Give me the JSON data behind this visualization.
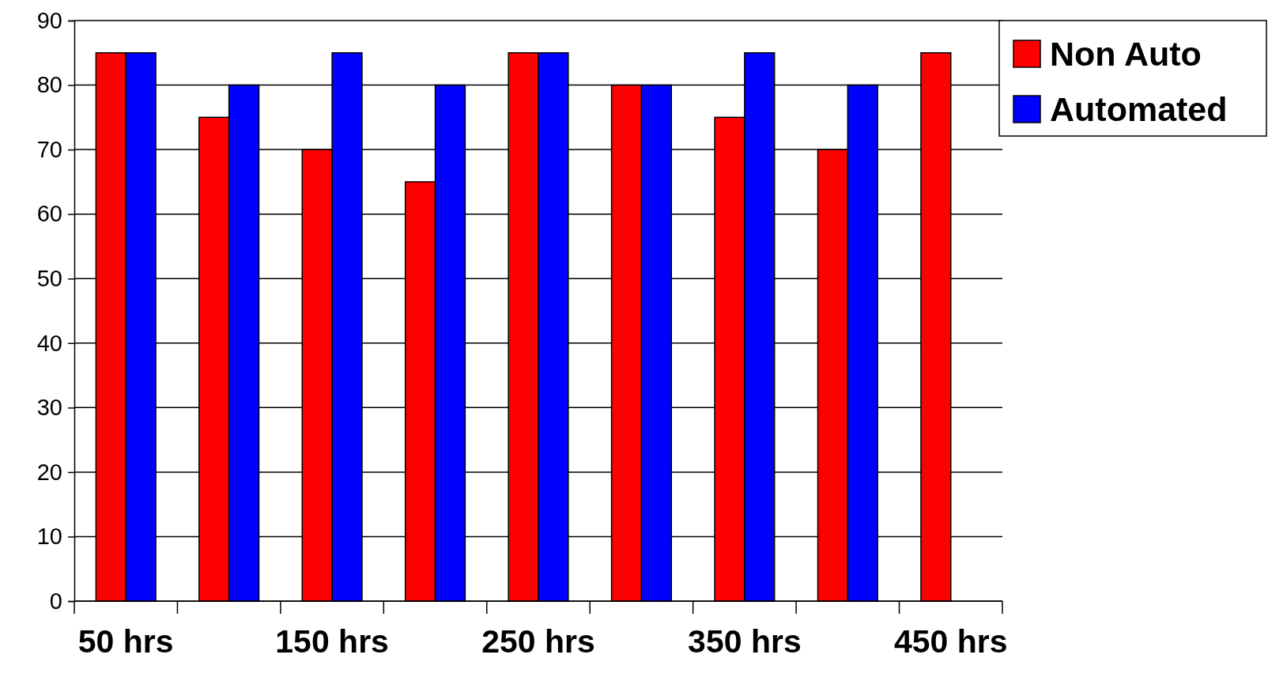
{
  "chart_data": {
    "type": "bar",
    "categories": [
      "50 hrs",
      null,
      "150 hrs",
      null,
      "250 hrs",
      null,
      "350 hrs",
      null,
      "450 hrs"
    ],
    "series": [
      {
        "name": "Non Auto",
        "color": "#ff0000",
        "values": [
          85,
          75,
          70,
          65,
          85,
          80,
          75,
          70,
          85
        ]
      },
      {
        "name": "Automated",
        "color": "#0000ff",
        "values": [
          85,
          80,
          85,
          80,
          85,
          80,
          85,
          80,
          null
        ]
      }
    ],
    "ylim": [
      0,
      90
    ],
    "yticks": [
      0,
      10,
      20,
      30,
      40,
      50,
      60,
      70,
      80,
      90
    ],
    "grid": "y",
    "legend": "top right"
  }
}
